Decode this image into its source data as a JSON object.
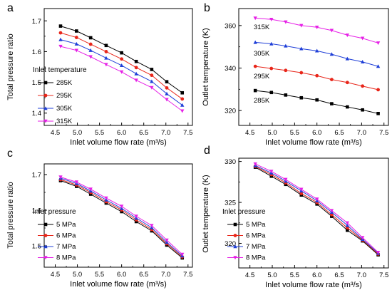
{
  "chart_data": [
    {
      "panel": "a",
      "type": "line",
      "xlabel": "Inlet volume flow rate (m³/s)",
      "ylabel": "Total pressure ratio",
      "xlim": [
        4.25,
        7.6
      ],
      "ylim": [
        1.36,
        1.74
      ],
      "xticks": [
        "4.5",
        "5.0",
        "5.5",
        "6.0",
        "6.5",
        "7.0",
        "7.5"
      ],
      "yticks": [
        "1.4",
        "1.5",
        "1.6",
        "1.7"
      ],
      "x": [
        4.62,
        4.98,
        5.3,
        5.65,
        6.0,
        6.33,
        6.68,
        7.02,
        7.37
      ],
      "legend_title": "Inlet temperature",
      "series": [
        {
          "name": "285K",
          "color": "#000000",
          "values": [
            1.683,
            1.667,
            1.645,
            1.62,
            1.596,
            1.568,
            1.542,
            1.502,
            1.466
          ]
        },
        {
          "name": "295K",
          "color": "#e8261a",
          "values": [
            1.661,
            1.646,
            1.624,
            1.6,
            1.576,
            1.548,
            1.523,
            1.482,
            1.446
          ]
        },
        {
          "name": "305K",
          "color": "#1f3fd8",
          "values": [
            1.639,
            1.625,
            1.604,
            1.579,
            1.555,
            1.528,
            1.503,
            1.463,
            1.426
          ]
        },
        {
          "name": "315K",
          "color": "#e620e6",
          "values": [
            1.617,
            1.604,
            1.583,
            1.558,
            1.534,
            1.507,
            1.483,
            1.444,
            1.407
          ]
        }
      ]
    },
    {
      "panel": "b",
      "type": "line",
      "xlabel": "Inlet volume flow rate (m³/s)",
      "ylabel": "Outlet temperature (K)",
      "xlim": [
        4.25,
        7.6
      ],
      "ylim": [
        313,
        368
      ],
      "xticks": [
        "4.5",
        "5.0",
        "5.5",
        "6.0",
        "6.5",
        "7.0",
        "7.5"
      ],
      "yticks": [
        "320",
        "340",
        "360"
      ],
      "x": [
        4.62,
        4.98,
        5.3,
        5.65,
        6.0,
        6.33,
        6.68,
        7.02,
        7.37
      ],
      "series": [
        {
          "name": "315K",
          "color": "#e620e6",
          "values": [
            363.5,
            362.9,
            361.7,
            360.0,
            359.2,
            357.7,
            355.5,
            354.0,
            351.8
          ]
        },
        {
          "name": "305K",
          "color": "#1f3fd8",
          "values": [
            352.1,
            351.4,
            350.4,
            349.1,
            348.1,
            346.5,
            344.4,
            342.9,
            340.8
          ]
        },
        {
          "name": "295K",
          "color": "#e8261a",
          "values": [
            340.8,
            339.8,
            338.9,
            337.8,
            336.4,
            334.6,
            333.2,
            331.5,
            329.8
          ]
        },
        {
          "name": "285K",
          "color": "#000000",
          "values": [
            329.4,
            328.5,
            327.3,
            326.0,
            325.0,
            323.2,
            321.7,
            320.3,
            318.6
          ]
        }
      ]
    },
    {
      "panel": "c",
      "type": "line",
      "xlabel": "Inlet volume flow rate (m³/s)",
      "ylabel": "Total pressure ratio",
      "xlim": [
        4.25,
        7.6
      ],
      "ylim": [
        1.44,
        1.73
      ],
      "xticks": [
        "4.5",
        "5.0",
        "5.5",
        "6.0",
        "6.5",
        "7.0",
        "7.5"
      ],
      "yticks": [
        "1.5",
        "1.6",
        "1.7"
      ],
      "x": [
        4.62,
        4.98,
        5.3,
        5.65,
        6.0,
        6.33,
        6.68,
        7.02,
        7.37
      ],
      "legend_title": "Inlet pressure",
      "series": [
        {
          "name": "5 MPa",
          "color": "#000000",
          "values": [
            1.683,
            1.667,
            1.645,
            1.62,
            1.596,
            1.568,
            1.542,
            1.502,
            1.466
          ]
        },
        {
          "name": "6 MPa",
          "color": "#e8261a",
          "values": [
            1.686,
            1.671,
            1.65,
            1.624,
            1.601,
            1.573,
            1.546,
            1.506,
            1.469
          ]
        },
        {
          "name": "7 MPa",
          "color": "#1f3fd8",
          "values": [
            1.69,
            1.675,
            1.654,
            1.629,
            1.605,
            1.578,
            1.551,
            1.51,
            1.472
          ]
        },
        {
          "name": "8 MPa",
          "color": "#e620e6",
          "values": [
            1.693,
            1.679,
            1.659,
            1.634,
            1.611,
            1.583,
            1.557,
            1.516,
            1.476
          ]
        }
      ]
    },
    {
      "panel": "d",
      "type": "line",
      "xlabel": "Inlet volume flow rate (m³/s)",
      "ylabel": "Outlet temperature (K)",
      "xlim": [
        4.25,
        7.6
      ],
      "ylim": [
        317,
        330.4
      ],
      "xticks": [
        "4.5",
        "5.0",
        "5.5",
        "6.0",
        "6.5",
        "7.0",
        "7.5"
      ],
      "yticks": [
        "320",
        "325",
        "330"
      ],
      "x": [
        4.62,
        4.98,
        5.3,
        5.65,
        6.0,
        6.33,
        6.68,
        7.02,
        7.37
      ],
      "legend_title": "Inlet pressure",
      "series": [
        {
          "name": "5 MPa",
          "color": "#000000",
          "values": [
            329.3,
            328.2,
            327.2,
            325.9,
            324.8,
            323.3,
            321.6,
            320.3,
            318.6
          ]
        },
        {
          "name": "6 MPa",
          "color": "#e8261a",
          "values": [
            329.4,
            328.4,
            327.4,
            326.1,
            325.0,
            323.5,
            321.9,
            320.4,
            318.7
          ]
        },
        {
          "name": "7 MPa",
          "color": "#1f3fd8",
          "values": [
            329.5,
            328.6,
            327.6,
            326.4,
            325.2,
            323.8,
            322.2,
            320.5,
            318.8
          ]
        },
        {
          "name": "8 MPa",
          "color": "#e620e6",
          "values": [
            329.7,
            328.8,
            327.8,
            326.6,
            325.4,
            324.0,
            322.5,
            320.7,
            318.9
          ]
        }
      ]
    }
  ]
}
